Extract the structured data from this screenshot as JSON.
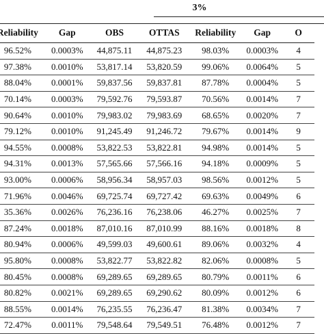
{
  "group_header": {
    "label": "3%"
  },
  "columns": [
    "Reliability",
    "Gap",
    "OBS",
    "OTTAS",
    "Reliability",
    "Gap",
    "O"
  ],
  "rows": [
    [
      "96.52%",
      "0.0003%",
      "44,875.11",
      "44,875.23",
      "98.03%",
      "0.0003%",
      "4"
    ],
    [
      "97.38%",
      "0.0010%",
      "53,817.14",
      "53,820.59",
      "99.06%",
      "0.0064%",
      "5"
    ],
    [
      "88.04%",
      "0.0001%",
      "59,837.56",
      "59,837.81",
      "87.78%",
      "0.0004%",
      "5"
    ],
    [
      "70.14%",
      "0.0003%",
      "79,592.76",
      "79,593.87",
      "70.56%",
      "0.0014%",
      "7"
    ],
    [
      "90.64%",
      "0.0010%",
      "79,983.02",
      "79,983.69",
      "68.65%",
      "0.0020%",
      "7"
    ],
    [
      "79.12%",
      "0.0010%",
      "91,245.49",
      "91,246.72",
      "79.67%",
      "0.0014%",
      "9"
    ],
    [
      "94.55%",
      "0.0008%",
      "53,822.53",
      "53,822.81",
      "94.98%",
      "0.0014%",
      "5"
    ],
    [
      "94.31%",
      "0.0013%",
      "57,565.66",
      "57,566.16",
      "94.18%",
      "0.0009%",
      "5"
    ],
    [
      "93.00%",
      "0.0006%",
      "58,956.34",
      "58,957.03",
      "98.56%",
      "0.0012%",
      "5"
    ],
    [
      "71.96%",
      "0.0046%",
      "69,725.74",
      "69,727.42",
      "69.63%",
      "0.0049%",
      "6"
    ],
    [
      "35.36%",
      "0.0026%",
      "76,236.16",
      "76,238.06",
      "46.27%",
      "0.0025%",
      "7"
    ],
    [
      "87.24%",
      "0.0018%",
      "87,010.16",
      "87,010.99",
      "88.16%",
      "0.0018%",
      "8"
    ],
    [
      "80.94%",
      "0.0006%",
      "49,599.03",
      "49,600.61",
      "89.06%",
      "0.0032%",
      "4"
    ],
    [
      "95.80%",
      "0.0008%",
      "53,822.77",
      "53,822.82",
      "82.06%",
      "0.0008%",
      "5"
    ],
    [
      "80.45%",
      "0.0008%",
      "69,289.65",
      "69,289.65",
      "80.79%",
      "0.0011%",
      "6"
    ],
    [
      "80.82%",
      "0.0021%",
      "69,289.65",
      "69,290.62",
      "80.09%",
      "0.0012%",
      "6"
    ],
    [
      "88.55%",
      "0.0014%",
      "76,235.55",
      "76,236.47",
      "81.38%",
      "0.0034%",
      "7"
    ],
    [
      "72.47%",
      "0.0011%",
      "79,548.64",
      "79,549.51",
      "76.48%",
      "0.0012%",
      "7"
    ]
  ]
}
